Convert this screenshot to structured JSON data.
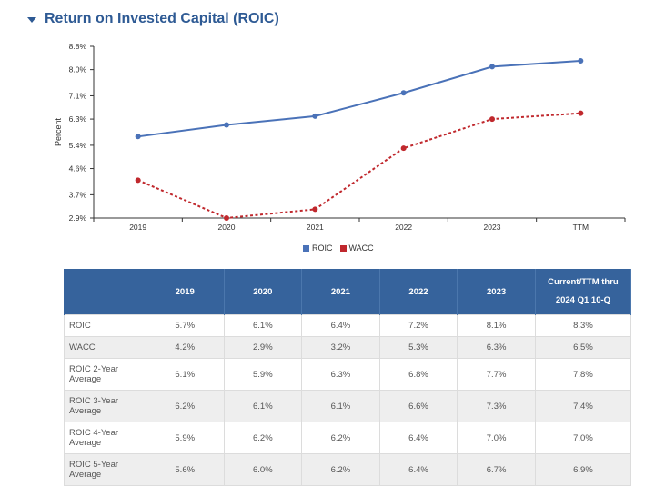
{
  "section": {
    "title": "Return on Invested Capital (ROIC)"
  },
  "chart_data": {
    "type": "line",
    "title": "",
    "xlabel": "",
    "ylabel": "Percent",
    "categories": [
      "2019",
      "2020",
      "2021",
      "2022",
      "2023",
      "TTM"
    ],
    "yticks": [
      "2.9%",
      "3.7%",
      "4.6%",
      "5.4%",
      "6.3%",
      "7.1%",
      "8.0%",
      "8.8%"
    ],
    "ylim": [
      2.9,
      8.8
    ],
    "grid": false,
    "legend_position": "bottom-center",
    "series": [
      {
        "name": "ROIC",
        "values": [
          5.7,
          6.1,
          6.4,
          7.2,
          8.1,
          8.3
        ],
        "color": "#4a72b8",
        "style": "solid"
      },
      {
        "name": "WACC",
        "values": [
          4.2,
          2.9,
          3.2,
          5.3,
          6.3,
          6.5
        ],
        "color": "#c0282d",
        "style": "dotted"
      }
    ]
  },
  "table": {
    "headers": [
      "",
      "2019",
      "2020",
      "2021",
      "2022",
      "2023",
      "Current/TTM thru 2024 Q1 10-Q"
    ],
    "rows": [
      {
        "label": "ROIC",
        "values": [
          "5.7%",
          "6.1%",
          "6.4%",
          "7.2%",
          "8.1%",
          "8.3%"
        ]
      },
      {
        "label": "WACC",
        "values": [
          "4.2%",
          "2.9%",
          "3.2%",
          "5.3%",
          "6.3%",
          "6.5%"
        ]
      },
      {
        "label": "ROIC 2-Year Average",
        "values": [
          "6.1%",
          "5.9%",
          "6.3%",
          "6.8%",
          "7.7%",
          "7.8%"
        ]
      },
      {
        "label": "ROIC 3-Year Average",
        "values": [
          "6.2%",
          "6.1%",
          "6.1%",
          "6.6%",
          "7.3%",
          "7.4%"
        ]
      },
      {
        "label": "ROIC 4-Year Average",
        "values": [
          "5.9%",
          "6.2%",
          "6.2%",
          "6.4%",
          "7.0%",
          "7.0%"
        ]
      },
      {
        "label": "ROIC 5-Year Average",
        "values": [
          "5.6%",
          "6.0%",
          "6.2%",
          "6.4%",
          "6.7%",
          "6.9%"
        ]
      }
    ]
  }
}
